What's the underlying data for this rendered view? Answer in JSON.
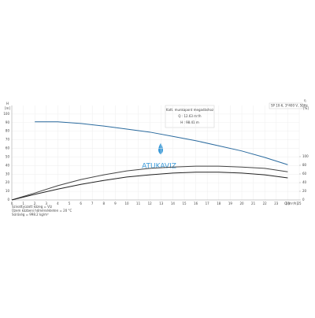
{
  "chart_data": {
    "type": "line",
    "watermark": "ATUKAVIZ",
    "pump_label": "SP 10-6, 3*400 V, 50Hz",
    "annotation": [
      "Katt. munkapont megadáshoz",
      "Q : 12.63 m³/h",
      "H : 98.41 m"
    ],
    "y_label": [
      "H",
      "[m]"
    ],
    "y2_label": [
      "η",
      "[%]"
    ],
    "x_label": "Q [m³/h]",
    "notes": [
      "Szivattyúzott közeg = Víz",
      "Üzem közbeni hőmérsékleten = 20 °C",
      "Sűrűség = 998.2 kg/m³"
    ],
    "xlim": [
      0,
      25
    ],
    "xticks": [
      0,
      1,
      2,
      3,
      4,
      5,
      6,
      7,
      8,
      9,
      10,
      11,
      12,
      13,
      14,
      15,
      16,
      17,
      18,
      19,
      20,
      21,
      22,
      23,
      24,
      25
    ],
    "ylim": [
      0,
      110
    ],
    "yticks": [
      0,
      10,
      20,
      30,
      40,
      50,
      60,
      70,
      80,
      90,
      100
    ],
    "y2lim": [
      0,
      100
    ],
    "y2ticks": [
      0,
      20,
      40,
      60,
      80,
      100
    ],
    "grid": true,
    "series": [
      {
        "color": "#2a6a9e",
        "x": [
          2,
          4,
          6,
          8,
          10,
          12,
          14,
          16,
          18,
          20,
          22,
          24
        ],
        "values": [
          91,
          91,
          89,
          86,
          82.5,
          79,
          74,
          69,
          63,
          57,
          49.5,
          41
        ]
      },
      {
        "color": "#444444",
        "axis": "y2",
        "x": [
          0,
          2,
          4,
          6,
          8,
          10,
          12,
          14,
          16,
          18,
          20,
          22,
          24
        ],
        "values": [
          0,
          16,
          33,
          47,
          58,
          67,
          73,
          76,
          78,
          78,
          76,
          73,
          65
        ]
      },
      {
        "color": "#222222",
        "axis": "y2",
        "x": [
          0,
          2,
          4,
          6,
          8,
          10,
          12,
          14,
          16,
          18,
          20,
          22,
          24
        ],
        "values": [
          0,
          13,
          25,
          36,
          45,
          53,
          58,
          62,
          64,
          64,
          62,
          58,
          51
        ]
      }
    ]
  }
}
